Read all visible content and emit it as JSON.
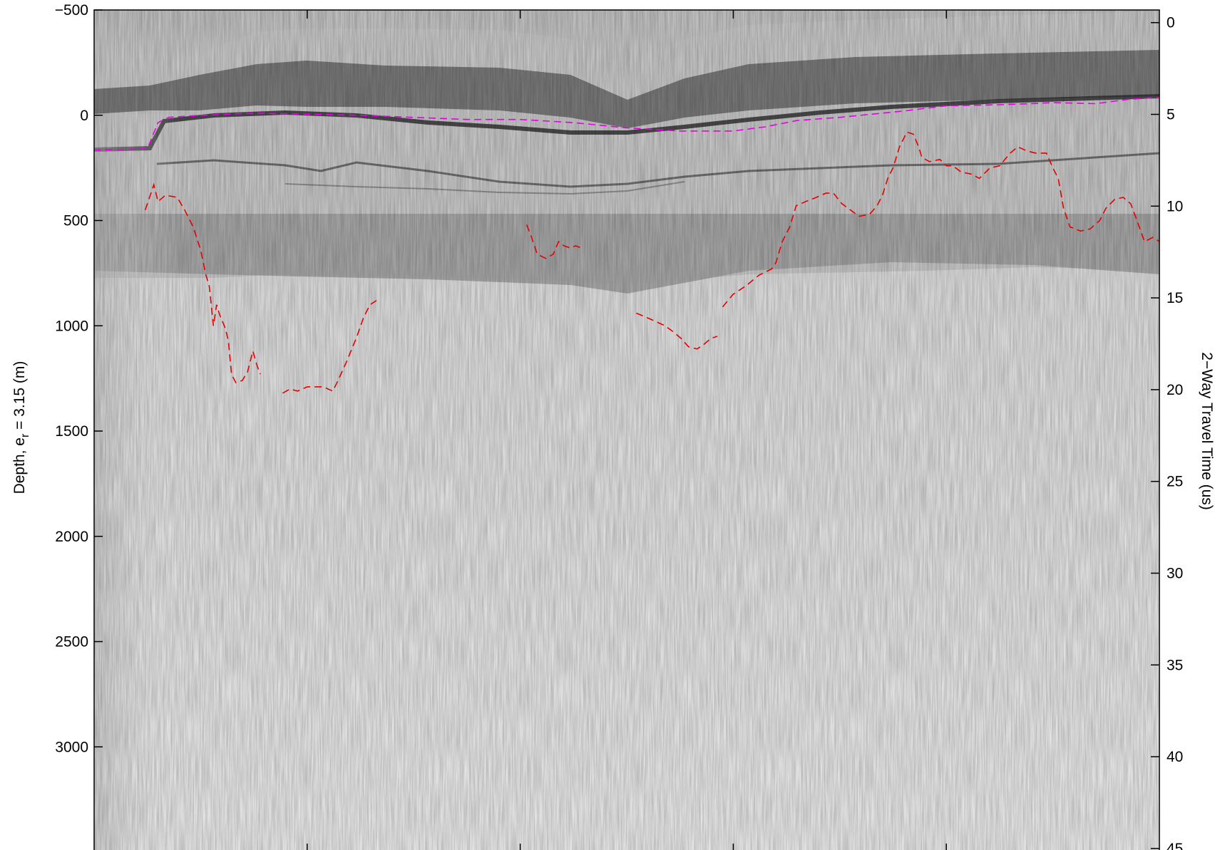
{
  "chart_data": {
    "type": "radargram",
    "left_axis": {
      "label": "Depth, e",
      "label_subscript": "r",
      "label_suffix": " = 3.15 (m)",
      "range": [
        -500,
        3500
      ],
      "ticks": [
        -500,
        0,
        500,
        1000,
        1500,
        2000,
        2500,
        3000
      ],
      "tick_labels": [
        "−500",
        "0",
        "500",
        "1000",
        "1500",
        "2000",
        "2500",
        "3000"
      ]
    },
    "right_axis": {
      "label": "2−Way Travel Time (us)",
      "ticks": [
        0,
        5,
        10,
        15,
        20,
        25,
        30,
        35,
        40,
        45
      ],
      "tick_labels": [
        "0",
        "5",
        "10",
        "15",
        "20",
        "25",
        "30",
        "35",
        "40",
        "45"
      ]
    },
    "x_axis": {
      "range": [
        0,
        100
      ],
      "ticks": [
        20,
        40,
        60,
        80
      ],
      "tick_labels": []
    },
    "colormap": "gray",
    "grid": false,
    "series": [
      {
        "role": "surface pick",
        "color": "#e600e6",
        "style": "dashed",
        "points": [
          [
            0,
            165
          ],
          [
            5,
            160
          ],
          [
            6,
            35
          ],
          [
            7,
            10
          ],
          [
            10,
            0
          ],
          [
            15,
            -10
          ],
          [
            20,
            -5
          ],
          [
            25,
            0
          ],
          [
            30,
            10
          ],
          [
            35,
            20
          ],
          [
            40,
            20
          ],
          [
            45,
            35
          ],
          [
            50,
            60
          ],
          [
            55,
            75
          ],
          [
            60,
            75
          ],
          [
            63,
            55
          ],
          [
            66,
            25
          ],
          [
            70,
            10
          ],
          [
            73,
            -5
          ],
          [
            76,
            -20
          ],
          [
            80,
            -45
          ],
          [
            85,
            -50
          ],
          [
            88,
            -55
          ],
          [
            90,
            -60
          ],
          [
            94,
            -55
          ],
          [
            97,
            -75
          ],
          [
            100,
            -85
          ]
        ]
      },
      {
        "role": "bed pick",
        "color": "#e60000",
        "style": "dashed",
        "segments": [
          [
            [
              4.8,
              450
            ],
            [
              5.6,
              330
            ],
            [
              6,
              410
            ],
            [
              6.7,
              380
            ],
            [
              7.8,
              390
            ],
            [
              8.5,
              450
            ],
            [
              9.3,
              530
            ],
            [
              10,
              640
            ],
            [
              10.5,
              760
            ],
            [
              10.8,
              810
            ],
            [
              11.2,
              1000
            ],
            [
              11.5,
              900
            ],
            [
              11.8,
              950
            ],
            [
              12.3,
              1010
            ],
            [
              12.6,
              1070
            ],
            [
              12.9,
              1230
            ],
            [
              13.3,
              1270
            ],
            [
              13.9,
              1260
            ],
            [
              14.4,
              1220
            ],
            [
              14.9,
              1120
            ],
            [
              15.3,
              1190
            ],
            [
              15.6,
              1230
            ]
          ],
          [
            [
              17.7,
              1320
            ],
            [
              18.4,
              1300
            ],
            [
              19.1,
              1310
            ],
            [
              20,
              1290
            ],
            [
              21.5,
              1290
            ],
            [
              22.4,
              1310
            ],
            [
              22.9,
              1260
            ],
            [
              23.7,
              1170
            ],
            [
              24.6,
              1060
            ],
            [
              25.3,
              960
            ],
            [
              25.9,
              900
            ],
            [
              26.5,
              880
            ]
          ],
          [
            [
              40.6,
              520
            ],
            [
              41,
              570
            ],
            [
              41.6,
              660
            ],
            [
              42.4,
              680
            ],
            [
              43.1,
              660
            ],
            [
              43.6,
              600
            ],
            [
              44.1,
              620
            ],
            [
              44.7,
              630
            ],
            [
              45.2,
              620
            ],
            [
              45.7,
              630
            ]
          ],
          [
            [
              50.9,
              940
            ],
            [
              52.3,
              970
            ],
            [
              53.6,
              1000
            ],
            [
              54.4,
              1030
            ],
            [
              55.1,
              1060
            ],
            [
              55.8,
              1100
            ],
            [
              56.6,
              1110
            ],
            [
              57.2,
              1090
            ],
            [
              57.9,
              1060
            ],
            [
              58.5,
              1050
            ]
          ],
          [
            [
              59,
              910
            ],
            [
              59.5,
              880
            ],
            [
              60,
              850
            ],
            [
              61.2,
              810
            ],
            [
              62.4,
              760
            ],
            [
              63.6,
              730
            ],
            [
              64,
              700
            ],
            [
              64.6,
              600
            ],
            [
              65.3,
              530
            ],
            [
              65.9,
              430
            ],
            [
              66.8,
              410
            ],
            [
              67.8,
              390
            ],
            [
              68.7,
              370
            ],
            [
              69.4,
              370
            ],
            [
              70.2,
              420
            ],
            [
              71,
              450
            ],
            [
              71.8,
              480
            ],
            [
              72.8,
              470
            ],
            [
              73.5,
              430
            ],
            [
              74,
              380
            ],
            [
              74.5,
              300
            ],
            [
              75,
              250
            ],
            [
              75.6,
              150
            ],
            [
              76.3,
              80
            ],
            [
              76.9,
              90
            ],
            [
              77.4,
              150
            ],
            [
              77.7,
              200
            ],
            [
              78.4,
              220
            ],
            [
              79.4,
              210
            ],
            [
              80,
              240
            ],
            [
              80.6,
              240
            ],
            [
              81.4,
              270
            ],
            [
              82.4,
              280
            ],
            [
              83.1,
              300
            ],
            [
              84.1,
              250
            ],
            [
              85,
              240
            ],
            [
              86,
              180
            ],
            [
              86.7,
              150
            ],
            [
              87.6,
              170
            ],
            [
              88.4,
              180
            ],
            [
              89.4,
              180
            ],
            [
              90,
              250
            ],
            [
              90.5,
              300
            ],
            [
              91,
              440
            ],
            [
              91.6,
              530
            ],
            [
              92.6,
              550
            ],
            [
              93.5,
              540
            ],
            [
              94.4,
              500
            ],
            [
              95,
              440
            ],
            [
              95.8,
              400
            ],
            [
              96.6,
              390
            ],
            [
              97.3,
              420
            ],
            [
              97.9,
              500
            ],
            [
              98.6,
              600
            ],
            [
              99.4,
              580
            ],
            [
              100,
              600
            ]
          ]
        ]
      }
    ]
  }
}
